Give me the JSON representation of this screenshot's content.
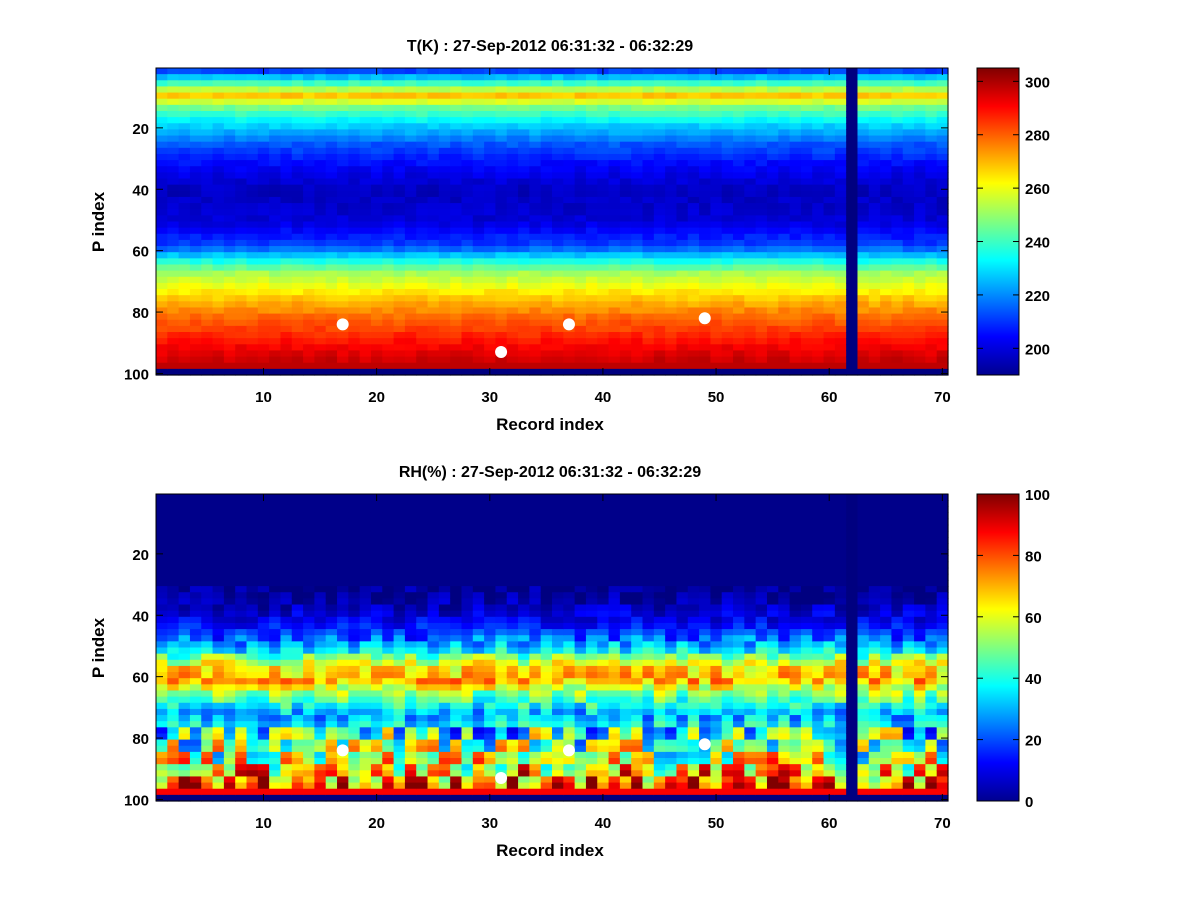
{
  "chart_data": [
    {
      "type": "heatmap",
      "title": "T(K) : 27-Sep-2012 06:31:32 - 06:32:29",
      "xlabel": "Record index",
      "ylabel": "P index",
      "xlim": [
        1,
        70
      ],
      "ylim": [
        1,
        100
      ],
      "y_reversed": true,
      "xticks": [
        10,
        20,
        30,
        40,
        50,
        60,
        70
      ],
      "yticks": [
        20,
        40,
        60,
        80,
        100
      ],
      "colormap": "jet",
      "clim": [
        190,
        305
      ],
      "colorbar_ticks": [
        200,
        220,
        240,
        260,
        280,
        300
      ],
      "profile": {
        "p_index": [
          1,
          5,
          9,
          13,
          18,
          25,
          32,
          40,
          50,
          58,
          63,
          67,
          72,
          76,
          80,
          86,
          92,
          97,
          98
        ],
        "value": [
          212,
          240,
          268,
          246,
          230,
          214,
          204,
          197,
          200,
          212,
          236,
          252,
          262,
          270,
          277,
          285,
          293,
          298,
          190
        ]
      },
      "missing_records": [
        62
      ],
      "markers": [
        {
          "x": 17,
          "y": 84
        },
        {
          "x": 31,
          "y": 93
        },
        {
          "x": 37,
          "y": 84
        },
        {
          "x": 49,
          "y": 82
        }
      ]
    },
    {
      "type": "heatmap",
      "title": "RH(%) : 27-Sep-2012 06:31:32 - 06:32:29",
      "xlabel": "Record index",
      "ylabel": "P index",
      "xlim": [
        1,
        70
      ],
      "ylim": [
        1,
        100
      ],
      "y_reversed": true,
      "xticks": [
        10,
        20,
        30,
        40,
        50,
        60,
        70
      ],
      "yticks": [
        20,
        40,
        60,
        80,
        100
      ],
      "colormap": "jet",
      "clim": [
        0,
        100
      ],
      "colorbar_ticks": [
        0,
        20,
        40,
        60,
        80,
        100
      ],
      "profile": {
        "p_index": [
          1,
          30,
          36,
          42,
          47,
          51,
          54,
          57,
          61,
          64,
          68,
          72,
          76,
          80,
          86,
          92,
          97,
          98
        ],
        "value": [
          1,
          1,
          5,
          12,
          22,
          35,
          55,
          65,
          70,
          55,
          42,
          28,
          38,
          45,
          55,
          72,
          88,
          0
        ]
      },
      "missing_records": [
        62
      ],
      "markers": [
        {
          "x": 17,
          "y": 84
        },
        {
          "x": 31,
          "y": 93
        },
        {
          "x": 37,
          "y": 84
        },
        {
          "x": 49,
          "y": 82
        }
      ]
    }
  ]
}
